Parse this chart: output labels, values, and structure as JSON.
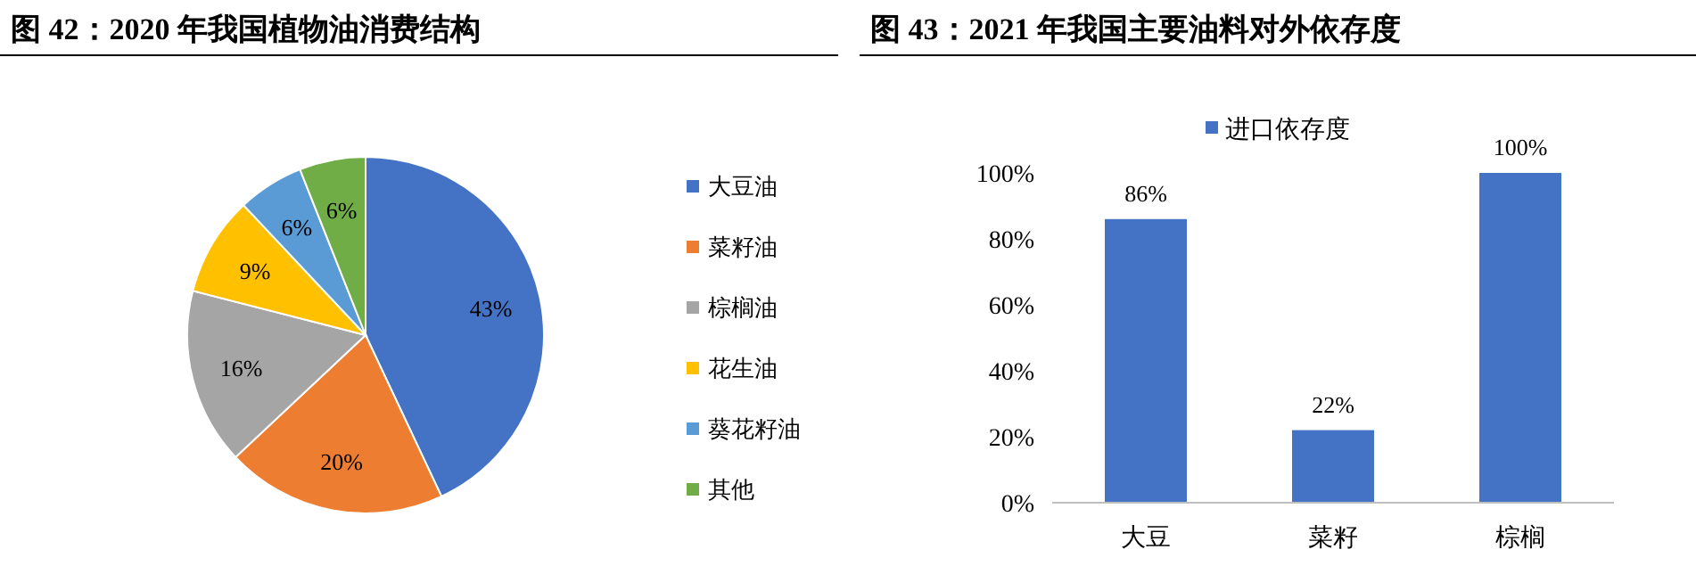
{
  "chart_data": [
    {
      "type": "pie",
      "title": "图 42：2020 年我国植物油消费结构",
      "categories": [
        "大豆油",
        "菜籽油",
        "棕榈油",
        "花生油",
        "葵花籽油",
        "其他"
      ],
      "values": [
        43,
        20,
        16,
        9,
        6,
        6
      ],
      "colors": [
        "#4472c4",
        "#ed7d31",
        "#a5a5a5",
        "#ffc000",
        "#5b9bd5",
        "#70ad47"
      ],
      "value_labels": [
        "43%",
        "20%",
        "16%",
        "9%",
        "6%",
        "6%"
      ],
      "legend": "right"
    },
    {
      "type": "bar",
      "title": "图 43：2021 年我国主要油料对外依存度",
      "categories": [
        "大豆",
        "菜籽",
        "棕榈"
      ],
      "series": [
        {
          "name": "进口依存度",
          "color": "#4472c4",
          "values": [
            86,
            22,
            100
          ],
          "value_labels": [
            "86%",
            "22%",
            "100%"
          ]
        }
      ],
      "ylim": [
        0,
        100
      ],
      "yticks": [
        {
          "value": 0,
          "label": "0%"
        },
        {
          "value": 20,
          "label": "20%"
        },
        {
          "value": 40,
          "label": "40%"
        },
        {
          "value": 60,
          "label": "60%"
        },
        {
          "value": 80,
          "label": "80%"
        },
        {
          "value": 100,
          "label": "100%"
        }
      ],
      "legend": "top",
      "grid": false
    }
  ]
}
